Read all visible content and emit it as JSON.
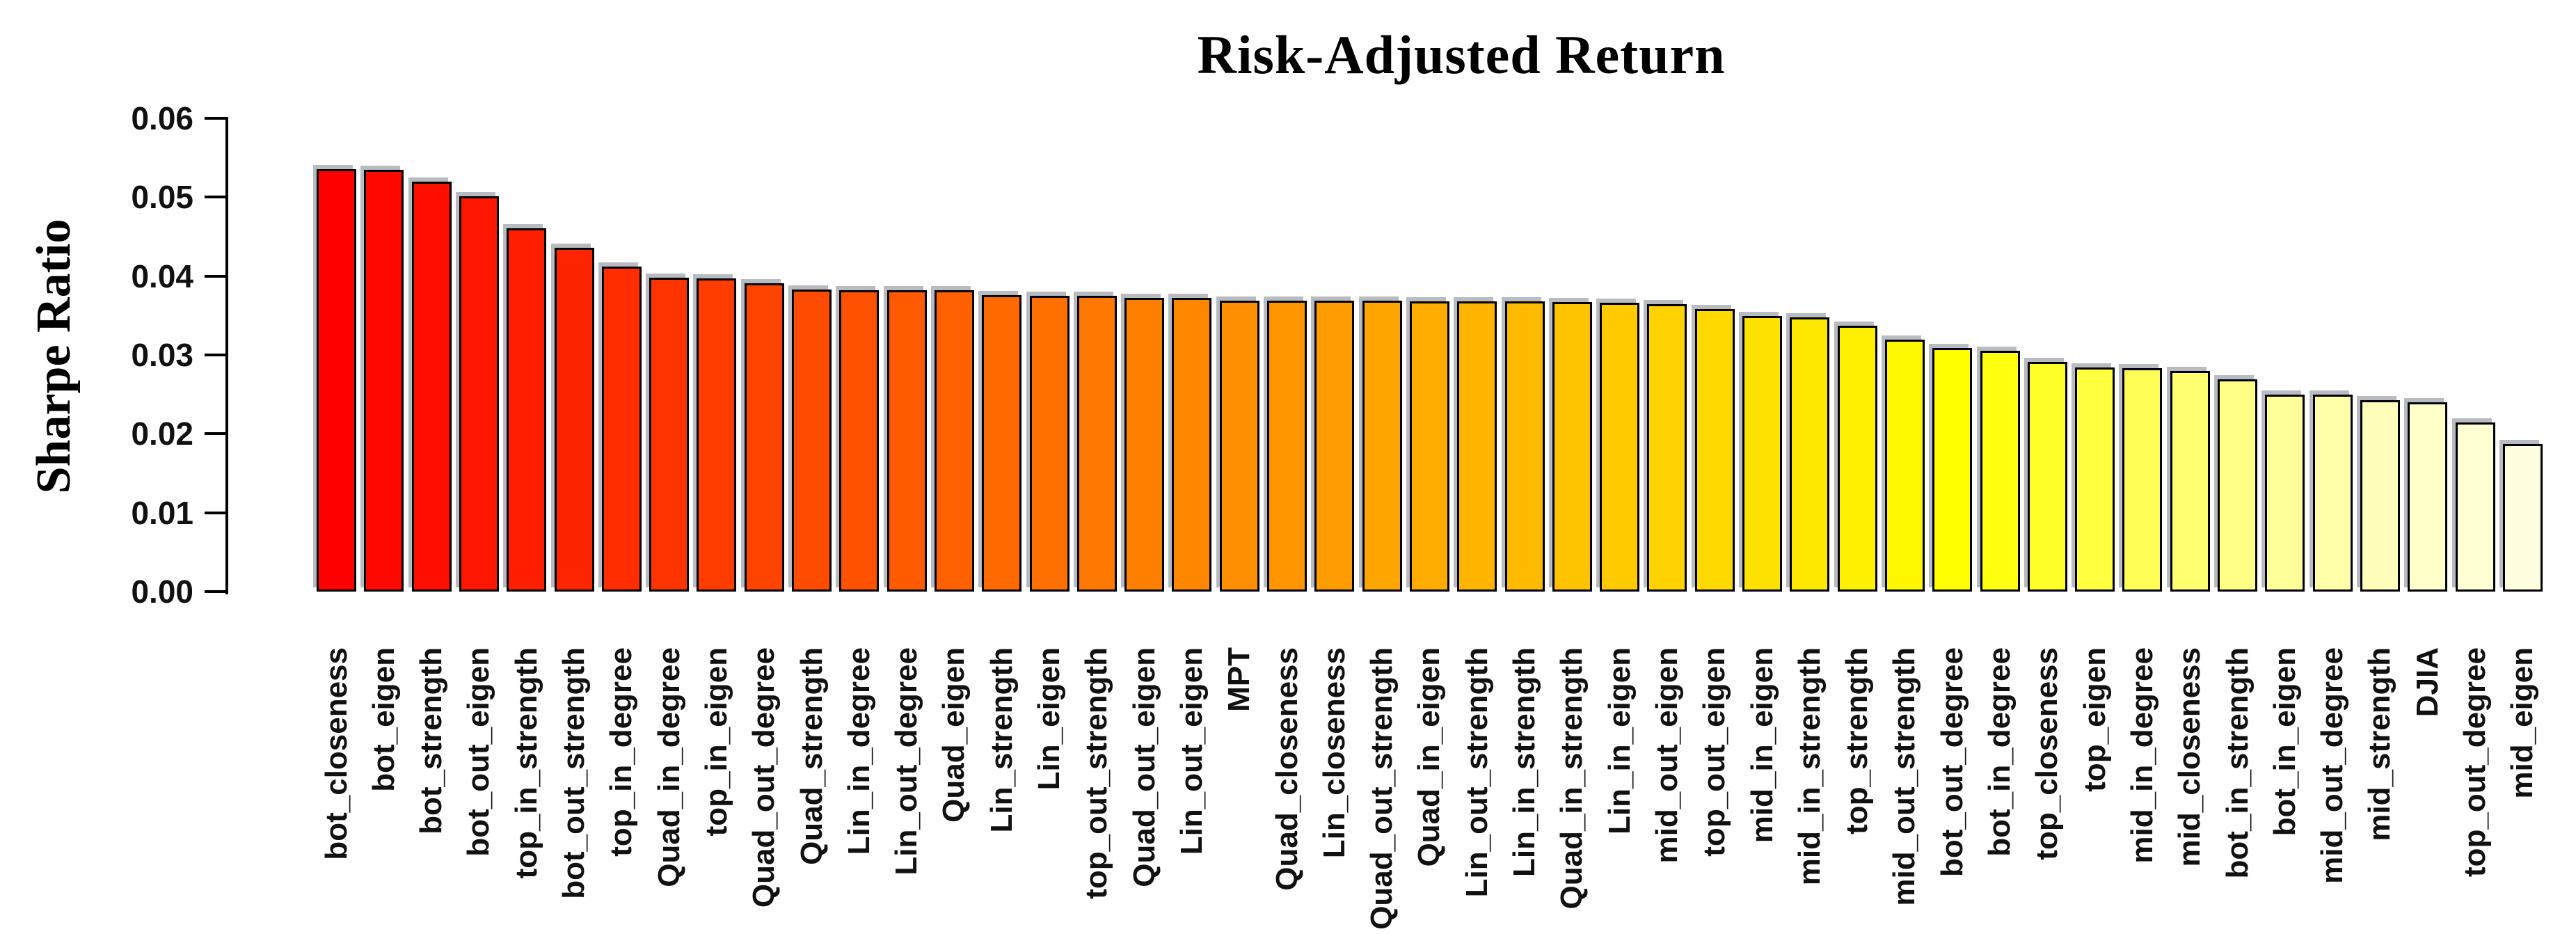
{
  "chart_data": {
    "type": "bar",
    "title": "Risk-Adjusted Return",
    "ylabel": "Sharpe Ratio",
    "xlabel": "",
    "ylim": [
      0,
      0.06
    ],
    "yticks": [
      "0.00",
      "0.01",
      "0.02",
      "0.03",
      "0.04",
      "0.05",
      "0.06"
    ],
    "grid": false,
    "legend": null,
    "bar_border_color": "#000000",
    "palette_note": "heat gradient red to pale yellow, one color per bar",
    "categories": [
      "bot_closeness",
      "bot_eigen",
      "bot_strength",
      "bot_out_eigen",
      "top_in_strength",
      "bot_out_strength",
      "top_in_degree",
      "Quad_in_degree",
      "top_in_eigen",
      "Quad_out_degree",
      "Quad_strength",
      "Lin_in_degree",
      "Lin_out_degree",
      "Quad_eigen",
      "Lin_strength",
      "Lin_eigen",
      "top_out_strength",
      "Quad_out_eigen",
      "Lin_out_eigen",
      "MPT",
      "Quad_closeness",
      "Lin_closeness",
      "Quad_out_strength",
      "Quad_in_eigen",
      "Lin_out_strength",
      "Lin_in_strength",
      "Quad_in_strength",
      "Lin_in_eigen",
      "mid_out_eigen",
      "top_out_eigen",
      "mid_in_eigen",
      "mid_in_strength",
      "top_strength",
      "mid_out_strength",
      "bot_out_degree",
      "bot_in_degree",
      "top_closeness",
      "top_eigen",
      "mid_in_degree",
      "mid_closeness",
      "bot_in_strength",
      "bot_in_eigen",
      "mid_out_degree",
      "mid_strength",
      "DJIA",
      "top_out_degree",
      "mid_eigen"
    ],
    "values": [
      0.0536,
      0.0535,
      0.052,
      0.0501,
      0.0461,
      0.0436,
      0.0412,
      0.0398,
      0.0397,
      0.0391,
      0.0383,
      0.0382,
      0.0382,
      0.0382,
      0.0376,
      0.0375,
      0.0375,
      0.0372,
      0.0372,
      0.0369,
      0.0369,
      0.0369,
      0.0369,
      0.0368,
      0.0368,
      0.0368,
      0.0367,
      0.0366,
      0.0364,
      0.0358,
      0.0349,
      0.0348,
      0.0337,
      0.0319,
      0.0309,
      0.0305,
      0.0291,
      0.0284,
      0.0283,
      0.028,
      0.0269,
      0.025,
      0.025,
      0.0243,
      0.024,
      0.0214,
      0.0187
    ],
    "bar_colors": [
      "#FF0000",
      "#FF0800",
      "#FF0F00",
      "#FF1600",
      "#FF1E00",
      "#FF2500",
      "#FF2D00",
      "#FF3400",
      "#FF3C00",
      "#FF4300",
      "#FF4B00",
      "#FF5200",
      "#FF5A00",
      "#FF6100",
      "#FF6900",
      "#FF7000",
      "#FF7800",
      "#FF7F00",
      "#FF8700",
      "#FF8E00",
      "#FF9600",
      "#FF9D00",
      "#FFA500",
      "#FFAC00",
      "#FFB400",
      "#FFBB00",
      "#FFC300",
      "#FFCA00",
      "#FFD200",
      "#FFD900",
      "#FFE100",
      "#FFE800",
      "#FFF000",
      "#FFF700",
      "#FFFF00",
      "#FFFF10",
      "#FFFF28",
      "#FFFF40",
      "#FFFF58",
      "#FFFF70",
      "#FFFF85",
      "#FFFF99",
      "#FFFFAA",
      "#FFFFBB",
      "#FFFFC9",
      "#FFFFD4",
      "#FFFFE0"
    ]
  },
  "page": {
    "background": "#ffffff"
  }
}
